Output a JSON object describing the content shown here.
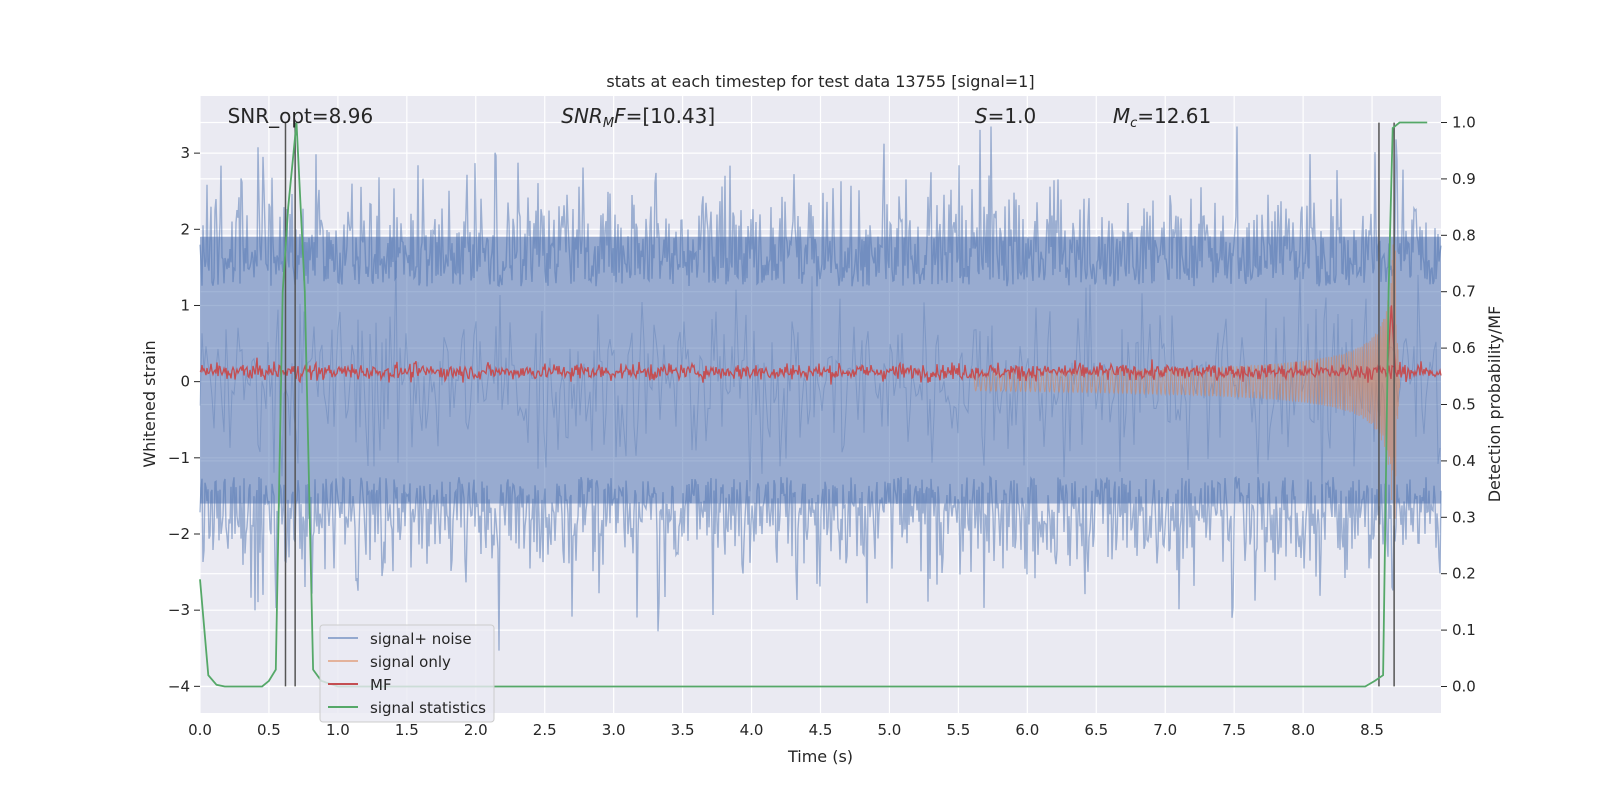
{
  "chart_data": {
    "type": "line",
    "title": "stats at each timestep for test data 13755 [signal=1]",
    "xlabel": "Time (s)",
    "ylabel": "Whitened strain",
    "y2label": "Detection probability/MF",
    "xlim": [
      0,
      9.0
    ],
    "ylim": [
      -4.35,
      3.75
    ],
    "y2lim": [
      -0.047,
      1.047
    ],
    "xticks": [
      "0.0",
      "0.5",
      "1.0",
      "1.5",
      "2.0",
      "2.5",
      "3.0",
      "3.5",
      "4.0",
      "4.5",
      "5.0",
      "5.5",
      "6.0",
      "6.5",
      "7.0",
      "7.5",
      "8.0",
      "8.5"
    ],
    "yticks": [
      "−4",
      "−3",
      "−2",
      "−1",
      "0",
      "1",
      "2",
      "3"
    ],
    "y2ticks": [
      "0.0",
      "0.1",
      "0.2",
      "0.3",
      "0.4",
      "0.5",
      "0.6",
      "0.7",
      "0.8",
      "0.9",
      "1.0"
    ],
    "grid": true,
    "legend_position": "lower-left",
    "annotations": [
      {
        "parts": [
          {
            "t": "SNR_opt=8.96",
            "i": false
          }
        ],
        "x": 0.2
      },
      {
        "parts": [
          {
            "t": "SNR",
            "i": true
          },
          {
            "t": "M",
            "i": true,
            "sub": true
          },
          {
            "t": "F",
            "i": true
          },
          {
            "t": "=[10.43]",
            "i": false
          }
        ],
        "x": 2.62
      },
      {
        "parts": [
          {
            "t": "S",
            "i": true
          },
          {
            "t": "=1.0",
            "i": false
          }
        ],
        "x": 5.62
      },
      {
        "parts": [
          {
            "t": "M",
            "i": true
          },
          {
            "t": "c",
            "i": true,
            "sub": true
          },
          {
            "t": "=12.61",
            "i": false
          }
        ],
        "x": 6.62
      }
    ],
    "series": [
      {
        "name": "signal+ noise",
        "color": "#4c72b0",
        "axis": "left",
        "style": "dense-noise",
        "range": [
          -3.6,
          3.35
        ],
        "core": [
          -1.6,
          1.9
        ]
      },
      {
        "name": "signal only",
        "color": "#dd8452",
        "axis": "left",
        "style": "chirp",
        "merger_time": 8.67,
        "peak_amplitude": 1.8
      },
      {
        "name": "MF",
        "color": "#c44e52",
        "axis": "left",
        "style": "noise-band",
        "center": 0.13,
        "halfwidth": 0.12,
        "peak": {
          "x": 8.64,
          "y": 1.0
        }
      },
      {
        "name": "signal statistics",
        "color": "#55a868",
        "axis": "right",
        "x": [
          0.0,
          0.06,
          0.12,
          0.18,
          0.3,
          0.45,
          0.5,
          0.55,
          0.6,
          0.64,
          0.7,
          0.76,
          0.82,
          0.88,
          1.0,
          2.0,
          4.0,
          6.0,
          8.0,
          8.45,
          8.52,
          8.58,
          8.62,
          8.65,
          8.7,
          8.8,
          8.9
        ],
        "y": [
          0.19,
          0.02,
          0.003,
          0.0,
          0.0,
          0.0,
          0.01,
          0.03,
          0.7,
          0.85,
          1.0,
          0.7,
          0.03,
          0.01,
          0.0,
          0.0,
          0.0,
          0.0,
          0.0,
          0.0,
          0.01,
          0.02,
          0.7,
          0.99,
          1.0,
          1.0,
          1.0
        ]
      }
    ],
    "vlines": [
      0.62,
      0.69,
      8.55,
      8.66
    ],
    "vline_range": [
      -4.0,
      3.4
    ]
  }
}
